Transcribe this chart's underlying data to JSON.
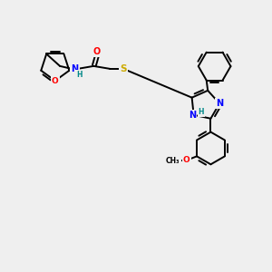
{
  "background_color": "#efefef",
  "bond_color": "#000000",
  "atom_colors": {
    "O": "#ff0000",
    "N": "#0000ff",
    "S": "#ccaa00",
    "H": "#008888",
    "C": "#000000"
  },
  "lw": 1.4
}
